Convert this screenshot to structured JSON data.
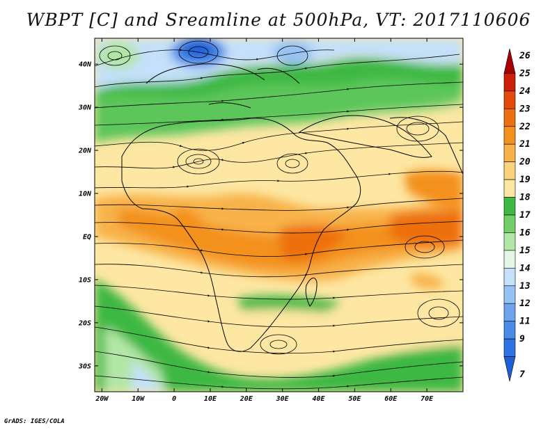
{
  "title": "WBPT [C] and Sreamline at 500hPa, VT: 2017110606",
  "footer": "GrADS: IGES/COLA",
  "map": {
    "lon_range": [
      -22,
      80
    ],
    "lat_range": [
      -36,
      46
    ],
    "lon_ticks": [
      {
        "value": -20,
        "label": "20W"
      },
      {
        "value": -10,
        "label": "10W"
      },
      {
        "value": 0,
        "label": "0"
      },
      {
        "value": 10,
        "label": "10E"
      },
      {
        "value": 20,
        "label": "20E"
      },
      {
        "value": 30,
        "label": "30E"
      },
      {
        "value": 40,
        "label": "40E"
      },
      {
        "value": 50,
        "label": "50E"
      },
      {
        "value": 60,
        "label": "60E"
      },
      {
        "value": 70,
        "label": "70E"
      }
    ],
    "lat_ticks": [
      {
        "value": 40,
        "label": "40N"
      },
      {
        "value": 30,
        "label": "30N"
      },
      {
        "value": 20,
        "label": "20N"
      },
      {
        "value": 10,
        "label": "10N"
      },
      {
        "value": 0,
        "label": "EQ"
      },
      {
        "value": -10,
        "label": "10S"
      },
      {
        "value": -20,
        "label": "20S"
      },
      {
        "value": -30,
        "label": "30S"
      }
    ]
  },
  "colorbar": {
    "labels": [
      "7",
      "9",
      "11",
      "12",
      "13",
      "14",
      "15",
      "16",
      "17",
      "18",
      "19",
      "20",
      "21",
      "22",
      "23",
      "24",
      "25",
      "26"
    ],
    "colors": [
      "#1c5fd8",
      "#2f74e3",
      "#4a8be8",
      "#6ea5ee",
      "#97c2f4",
      "#c4e0fa",
      "#e4f6e4",
      "#b2e6a6",
      "#72cf6a",
      "#3cb843",
      "#fde7a3",
      "#fbd37c",
      "#f8b24a",
      "#f3911f",
      "#ee6f10",
      "#e34a0c",
      "#cc2008",
      "#aa0000"
    ]
  }
}
